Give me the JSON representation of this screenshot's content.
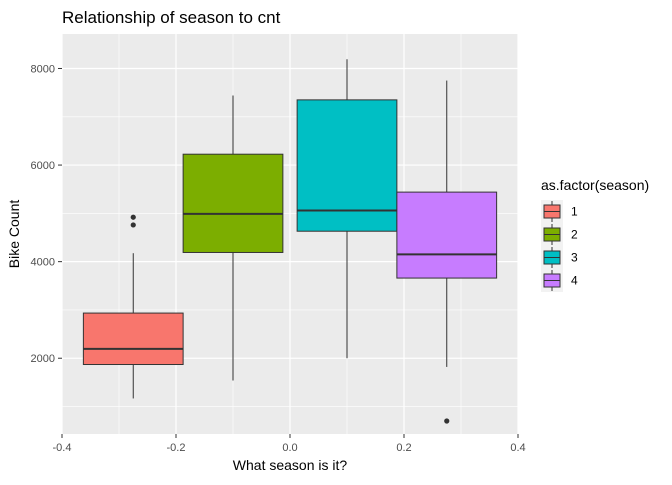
{
  "chart_data": {
    "type": "boxplot",
    "title": "Relationship of season to cnt",
    "xlabel": "What season is it?",
    "ylabel": "Bike Count",
    "xlim": [
      -0.4,
      0.4
    ],
    "ylim": [
      431,
      8714
    ],
    "x_ticks": [
      -0.4,
      -0.2,
      0.0,
      0.2,
      0.4
    ],
    "x_tick_labels": [
      "-0.4",
      "-0.2",
      "0.0",
      "0.2",
      "0.4"
    ],
    "y_ticks": [
      2000,
      4000,
      6000,
      8000
    ],
    "y_tick_labels": [
      "2000",
      "4000",
      "6000",
      "8000"
    ],
    "grid": true,
    "panel_background": "#ebebeb",
    "legend": {
      "title": "as.factor(season)",
      "placement": "right",
      "entries": [
        "1",
        "2",
        "3",
        "4"
      ]
    },
    "series": [
      {
        "name": "1",
        "color": "#f8766d",
        "x_min": -0.3625,
        "x_max": -0.1875,
        "whisker_low": 1167,
        "q1": 1870,
        "median": 2195,
        "q3": 2935,
        "whisker_high": 4175,
        "outliers": [
          4760,
          4920
        ]
      },
      {
        "name": "2",
        "color": "#7cae00",
        "x_min": -0.1875,
        "x_max": -0.0125,
        "whisker_low": 1540,
        "q1": 4190,
        "median": 4990,
        "q3": 6225,
        "whisker_high": 7440,
        "outliers": []
      },
      {
        "name": "3",
        "color": "#00bfc4",
        "x_min": 0.0125,
        "x_max": 0.1875,
        "whisker_low": 2000,
        "q1": 4630,
        "median": 5060,
        "q3": 7350,
        "whisker_high": 8190,
        "outliers": []
      },
      {
        "name": "4",
        "color": "#c77cff",
        "x_min": 0.1875,
        "x_max": 0.3625,
        "whisker_low": 1820,
        "q1": 3660,
        "median": 4150,
        "q3": 5440,
        "whisker_high": 7750,
        "outliers": [
          700
        ]
      }
    ]
  }
}
